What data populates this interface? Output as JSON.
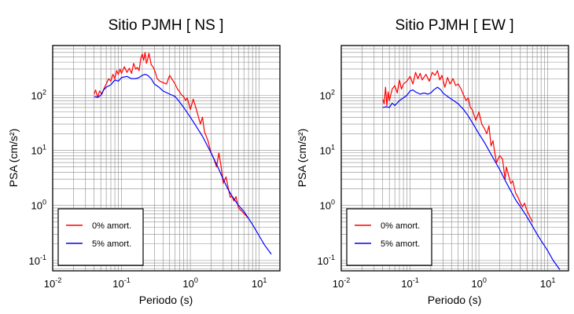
{
  "colors": {
    "undamped": "#ff0000",
    "damped": "#0000ff",
    "grid": "#8c8c8c"
  },
  "chart_data": [
    {
      "type": "line",
      "title": "Sitio PJMH [ NS ]",
      "xlabel": "Periodo (s)",
      "ylabel": "PSA (cm/s²)",
      "xscale": "log",
      "yscale": "log",
      "xlim": [
        0.01,
        20
      ],
      "ylim": [
        0.065,
        800
      ],
      "xticks": [
        "10⁻²",
        "10⁻¹",
        "10⁰",
        "10¹"
      ],
      "yticks": [
        "10⁻¹",
        "10⁰",
        "10¹",
        "10²"
      ],
      "grid": true,
      "legend_position": "bottom-left",
      "series": [
        {
          "name": "0% amort.",
          "color": "#ff0000",
          "points": [
            [
              0.04,
              105
            ],
            [
              0.042,
              125
            ],
            [
              0.045,
              92
            ],
            [
              0.048,
              120
            ],
            [
              0.052,
              105
            ],
            [
              0.056,
              135
            ],
            [
              0.06,
              160
            ],
            [
              0.065,
              200
            ],
            [
              0.07,
              180
            ],
            [
              0.075,
              240
            ],
            [
              0.08,
              200
            ],
            [
              0.085,
              280
            ],
            [
              0.09,
              240
            ],
            [
              0.095,
              300
            ],
            [
              0.1,
              250
            ],
            [
              0.11,
              330
            ],
            [
              0.12,
              260
            ],
            [
              0.13,
              310
            ],
            [
              0.14,
              250
            ],
            [
              0.15,
              380
            ],
            [
              0.16,
              300
            ],
            [
              0.17,
              320
            ],
            [
              0.18,
              280
            ],
            [
              0.19,
              460
            ],
            [
              0.2,
              560
            ],
            [
              0.21,
              430
            ],
            [
              0.22,
              600
            ],
            [
              0.23,
              380
            ],
            [
              0.24,
              450
            ],
            [
              0.25,
              580
            ],
            [
              0.27,
              360
            ],
            [
              0.29,
              320
            ],
            [
              0.31,
              260
            ],
            [
              0.33,
              200
            ],
            [
              0.36,
              180
            ],
            [
              0.4,
              170
            ],
            [
              0.45,
              160
            ],
            [
              0.5,
              230
            ],
            [
              0.55,
              190
            ],
            [
              0.6,
              160
            ],
            [
              0.65,
              130
            ],
            [
              0.7,
              115
            ],
            [
              0.75,
              100
            ],
            [
              0.8,
              95
            ],
            [
              0.85,
              80
            ],
            [
              0.9,
              90
            ],
            [
              0.95,
              70
            ],
            [
              1.0,
              55
            ],
            [
              1.1,
              85
            ],
            [
              1.2,
              60
            ],
            [
              1.3,
              42
            ],
            [
              1.4,
              30
            ],
            [
              1.5,
              40
            ],
            [
              1.6,
              22
            ],
            [
              1.8,
              15
            ],
            [
              2.0,
              9
            ],
            [
              2.2,
              7
            ],
            [
              2.4,
              5
            ],
            [
              2.6,
              9
            ],
            [
              2.8,
              5
            ],
            [
              3.0,
              2.5
            ],
            [
              3.3,
              3.3
            ],
            [
              3.6,
              1.9
            ],
            [
              3.8,
              1.4
            ],
            [
              4.0,
              1.5
            ],
            [
              4.3,
              1.2
            ],
            [
              4.6,
              1.45
            ],
            [
              5.0,
              0.9
            ],
            [
              6.0,
              0.72
            ],
            [
              7.0,
              0.58
            ]
          ]
        },
        {
          "name": "5% amort.",
          "color": "#0000ff",
          "points": [
            [
              0.04,
              95
            ],
            [
              0.045,
              92
            ],
            [
              0.05,
              100
            ],
            [
              0.055,
              125
            ],
            [
              0.06,
              140
            ],
            [
              0.07,
              155
            ],
            [
              0.08,
              190
            ],
            [
              0.09,
              180
            ],
            [
              0.1,
              210
            ],
            [
              0.12,
              220
            ],
            [
              0.14,
              200
            ],
            [
              0.16,
              200
            ],
            [
              0.18,
              210
            ],
            [
              0.2,
              230
            ],
            [
              0.22,
              240
            ],
            [
              0.24,
              230
            ],
            [
              0.27,
              200
            ],
            [
              0.3,
              160
            ],
            [
              0.35,
              140
            ],
            [
              0.4,
              120
            ],
            [
              0.5,
              105
            ],
            [
              0.6,
              95
            ],
            [
              0.7,
              75
            ],
            [
              0.8,
              60
            ],
            [
              1.0,
              40
            ],
            [
              1.2,
              28
            ],
            [
              1.5,
              18
            ],
            [
              2.0,
              9
            ],
            [
              2.5,
              5
            ],
            [
              3.0,
              3
            ],
            [
              3.5,
              2
            ],
            [
              4.0,
              1.5
            ],
            [
              5.0,
              1.0
            ],
            [
              6.0,
              0.78
            ],
            [
              7.0,
              0.58
            ],
            [
              8.0,
              0.45
            ],
            [
              10.0,
              0.28
            ],
            [
              12.0,
              0.19
            ],
            [
              15.0,
              0.13
            ]
          ]
        }
      ]
    },
    {
      "type": "line",
      "title": "Sitio PJMH [ EW ]",
      "xlabel": "Periodo (s)",
      "ylabel": "PSA (cm/s²)",
      "xscale": "log",
      "yscale": "log",
      "xlim": [
        0.01,
        20
      ],
      "ylim": [
        0.065,
        800
      ],
      "xticks": [
        "10⁻²",
        "10⁻¹",
        "10⁰",
        "10¹"
      ],
      "yticks": [
        "10⁻¹",
        "10⁰",
        "10¹",
        "10²"
      ],
      "grid": true,
      "legend_position": "bottom-left",
      "series": [
        {
          "name": "0% amort.",
          "color": "#ff0000",
          "points": [
            [
              0.04,
              85
            ],
            [
              0.042,
              70
            ],
            [
              0.044,
              140
            ],
            [
              0.046,
              65
            ],
            [
              0.048,
              115
            ],
            [
              0.05,
              80
            ],
            [
              0.055,
              130
            ],
            [
              0.06,
              150
            ],
            [
              0.065,
              110
            ],
            [
              0.07,
              190
            ],
            [
              0.075,
              130
            ],
            [
              0.08,
              160
            ],
            [
              0.09,
              180
            ],
            [
              0.1,
              220
            ],
            [
              0.11,
              160
            ],
            [
              0.12,
              260
            ],
            [
              0.13,
              200
            ],
            [
              0.14,
              250
            ],
            [
              0.15,
              190
            ],
            [
              0.17,
              240
            ],
            [
              0.19,
              180
            ],
            [
              0.21,
              260
            ],
            [
              0.23,
              230
            ],
            [
              0.25,
              280
            ],
            [
              0.27,
              190
            ],
            [
              0.29,
              230
            ],
            [
              0.32,
              140
            ],
            [
              0.35,
              210
            ],
            [
              0.38,
              160
            ],
            [
              0.42,
              200
            ],
            [
              0.46,
              150
            ],
            [
              0.5,
              160
            ],
            [
              0.55,
              130
            ],
            [
              0.6,
              100
            ],
            [
              0.65,
              80
            ],
            [
              0.7,
              90
            ],
            [
              0.75,
              60
            ],
            [
              0.8,
              55
            ],
            [
              0.9,
              35
            ],
            [
              1.0,
              50
            ],
            [
              1.1,
              30
            ],
            [
              1.2,
              25
            ],
            [
              1.3,
              20
            ],
            [
              1.4,
              28
            ],
            [
              1.5,
              12
            ],
            [
              1.6,
              15
            ],
            [
              1.7,
              9
            ],
            [
              1.8,
              6
            ],
            [
              2.0,
              8
            ],
            [
              2.2,
              7
            ],
            [
              2.4,
              3
            ],
            [
              2.5,
              5
            ],
            [
              2.7,
              3.5
            ],
            [
              2.9,
              2.5
            ],
            [
              3.1,
              2.8
            ],
            [
              3.4,
              1.7
            ],
            [
              3.7,
              1.4
            ],
            [
              4.0,
              1.1
            ],
            [
              4.3,
              0.95
            ],
            [
              4.6,
              1.1
            ],
            [
              5.0,
              0.8
            ],
            [
              5.5,
              0.62
            ],
            [
              6.0,
              0.5
            ]
          ]
        },
        {
          "name": "5% amort.",
          "color": "#0000ff",
          "points": [
            [
              0.04,
              60
            ],
            [
              0.045,
              62
            ],
            [
              0.05,
              60
            ],
            [
              0.055,
              72
            ],
            [
              0.06,
              65
            ],
            [
              0.07,
              80
            ],
            [
              0.08,
              90
            ],
            [
              0.09,
              100
            ],
            [
              0.1,
              120
            ],
            [
              0.11,
              125
            ],
            [
              0.12,
              115
            ],
            [
              0.14,
              105
            ],
            [
              0.16,
              110
            ],
            [
              0.18,
              105
            ],
            [
              0.2,
              110
            ],
            [
              0.22,
              125
            ],
            [
              0.25,
              140
            ],
            [
              0.28,
              125
            ],
            [
              0.3,
              110
            ],
            [
              0.35,
              95
            ],
            [
              0.4,
              85
            ],
            [
              0.5,
              70
            ],
            [
              0.6,
              55
            ],
            [
              0.7,
              42
            ],
            [
              0.8,
              32
            ],
            [
              1.0,
              20
            ],
            [
              1.2,
              14
            ],
            [
              1.5,
              8.5
            ],
            [
              2.0,
              4.5
            ],
            [
              2.5,
              2.6
            ],
            [
              3.0,
              1.7
            ],
            [
              3.5,
              1.2
            ],
            [
              4.0,
              0.95
            ],
            [
              5.0,
              0.62
            ],
            [
              6.0,
              0.42
            ],
            [
              7.0,
              0.3
            ],
            [
              8.0,
              0.23
            ],
            [
              10.0,
              0.15
            ],
            [
              12.0,
              0.1
            ],
            [
              15.0,
              0.068
            ]
          ]
        }
      ]
    }
  ]
}
